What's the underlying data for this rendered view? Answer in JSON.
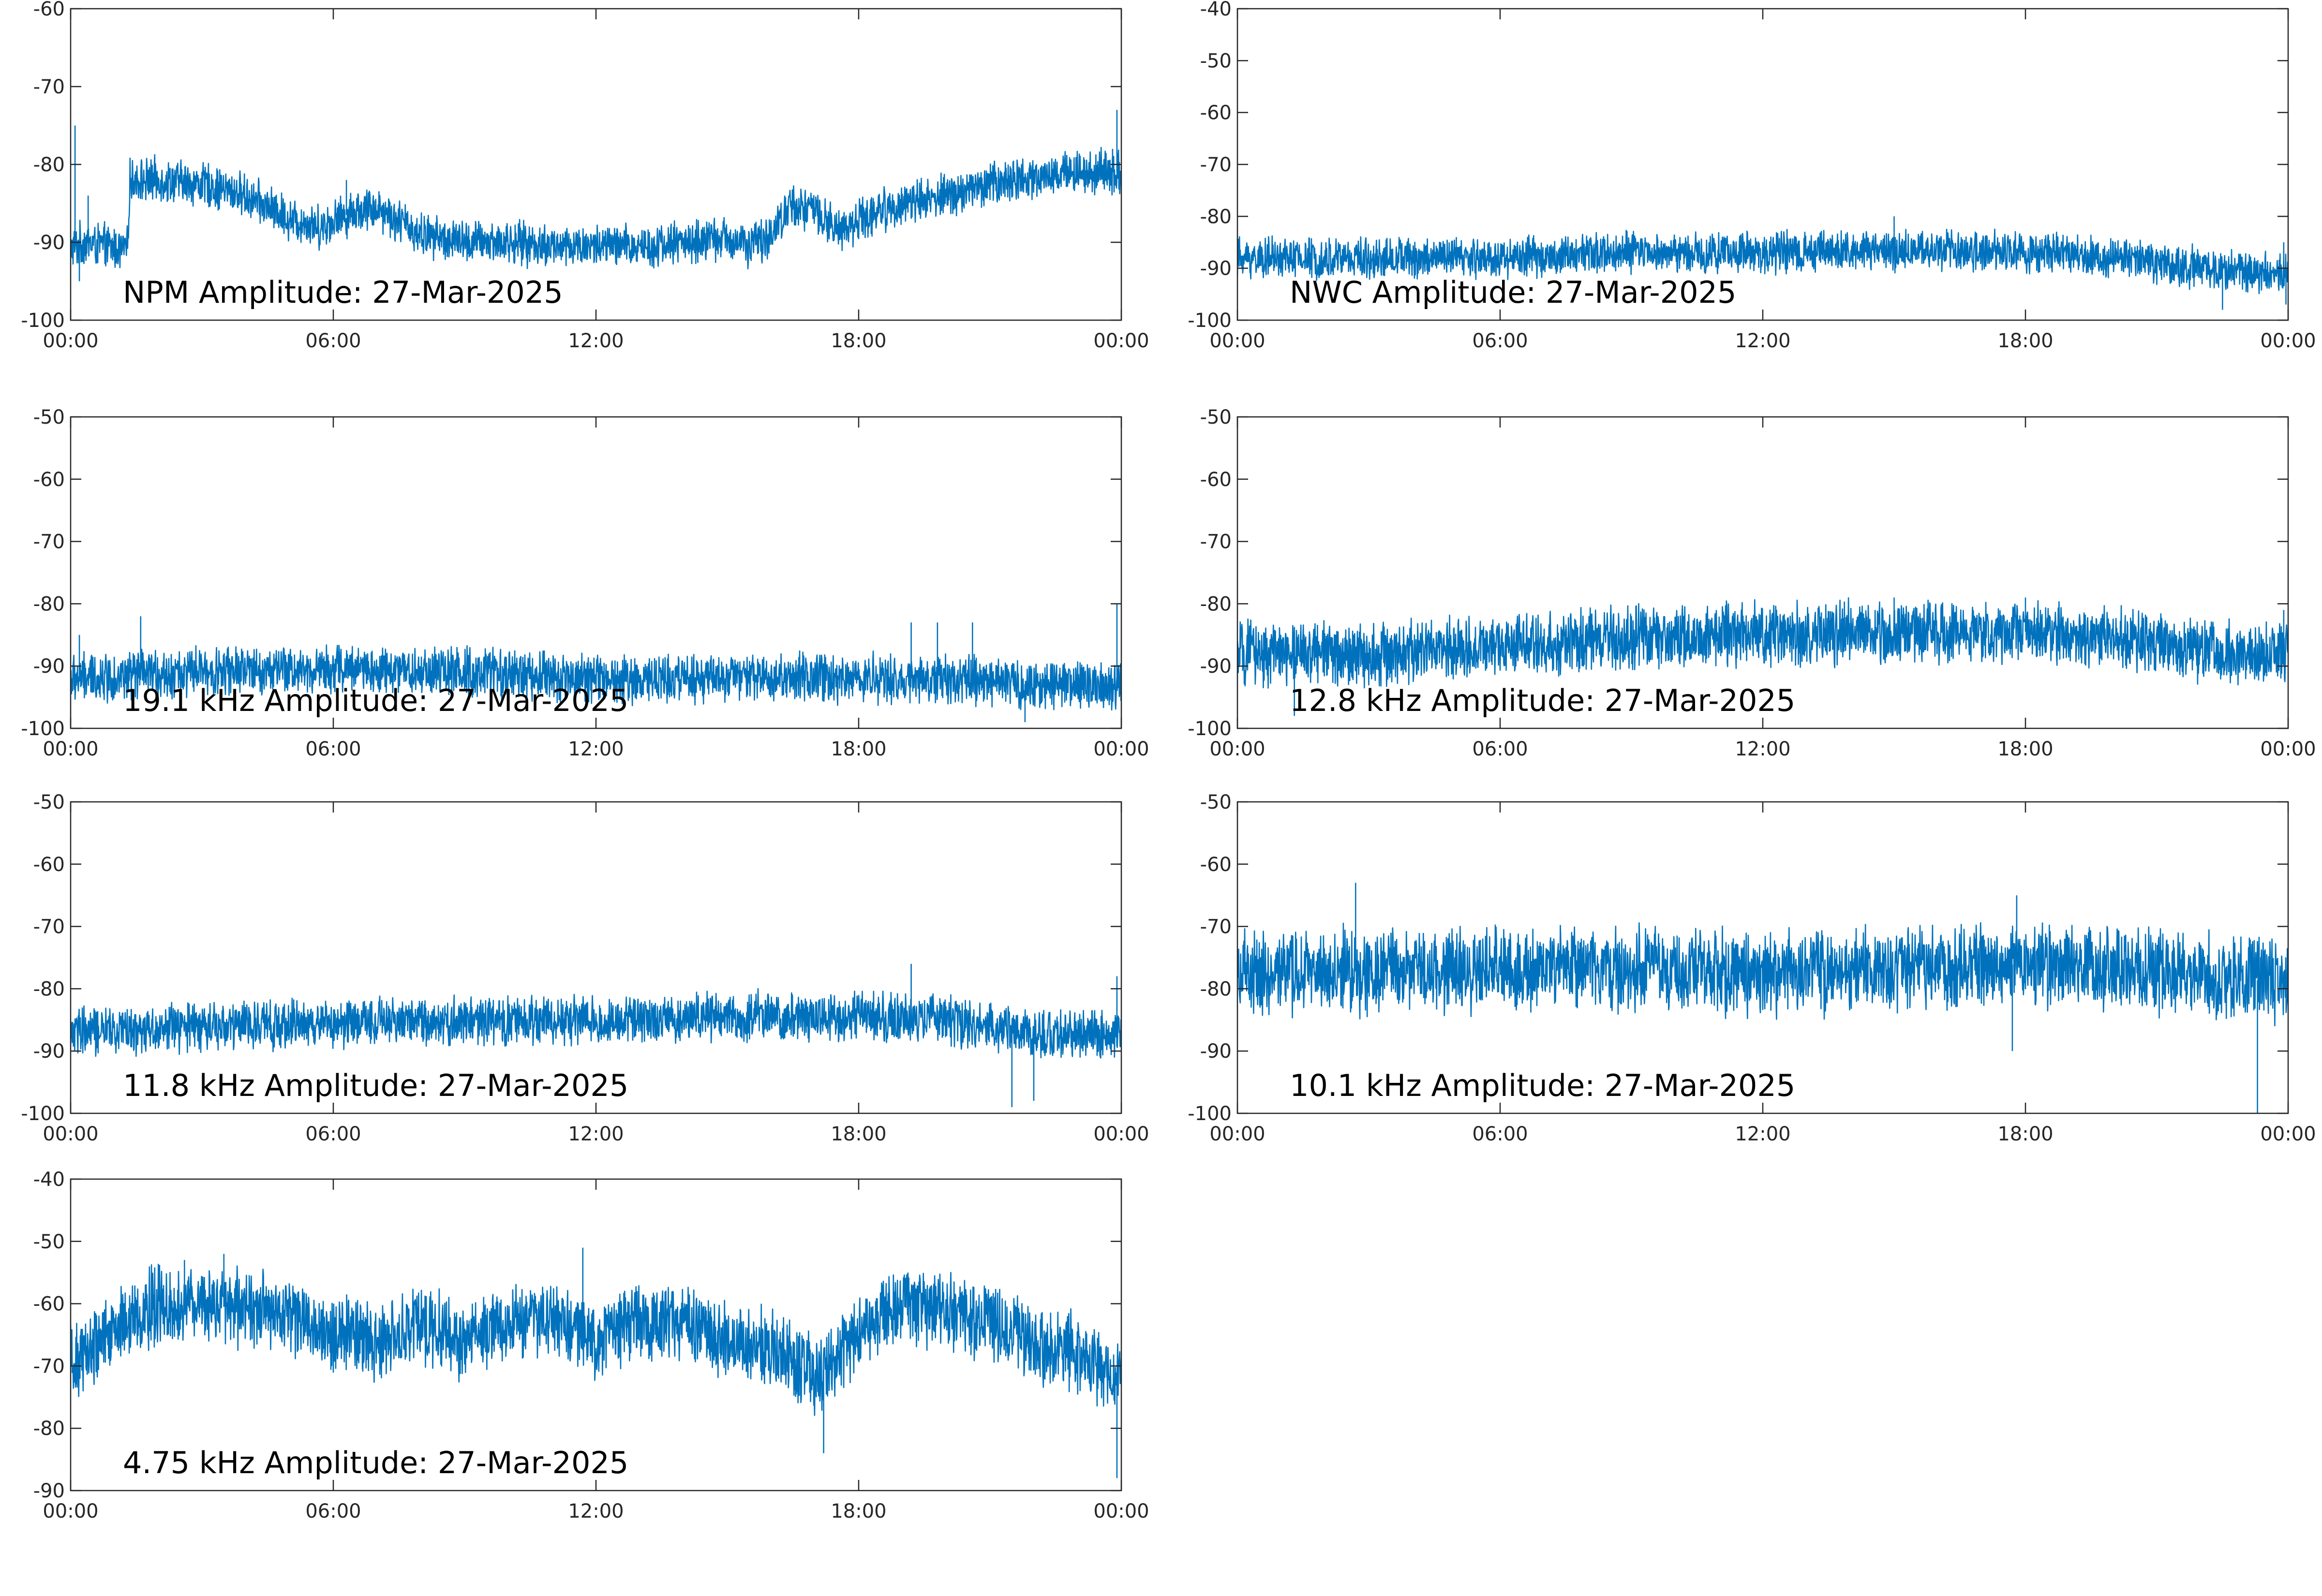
{
  "colors": {
    "trace": "#0072bd",
    "axis": "#262626",
    "background": "#ffffff"
  },
  "chart_data": [
    {
      "type": "line",
      "title": "NPM Amplitude: 27-Mar-2025",
      "xticks": [
        "00:00",
        "06:00",
        "12:00",
        "18:00",
        "00:00"
      ],
      "xlim_hours": [
        0,
        24
      ],
      "ylim": [
        -100,
        -60
      ],
      "yticks": [
        -100,
        -90,
        -80,
        -70,
        -60
      ],
      "ytick_labels": [
        "-100",
        "-90",
        "-80",
        "-70",
        "-60"
      ],
      "baseline": [
        [
          0,
          -91
        ],
        [
          0.3,
          -90
        ],
        [
          1.3,
          -91
        ],
        [
          1.35,
          -82
        ],
        [
          2,
          -82
        ],
        [
          3,
          -82.5
        ],
        [
          4,
          -84
        ],
        [
          5,
          -87
        ],
        [
          5.7,
          -88
        ],
        [
          6.5,
          -86
        ],
        [
          7,
          -85.5
        ],
        [
          8,
          -89
        ],
        [
          9,
          -90
        ],
        [
          10,
          -90
        ],
        [
          11,
          -90.5
        ],
        [
          12,
          -90.5
        ],
        [
          13,
          -90.5
        ],
        [
          14,
          -90
        ],
        [
          15,
          -89.5
        ],
        [
          15.5,
          -90.5
        ],
        [
          16,
          -89
        ],
        [
          16.5,
          -85
        ],
        [
          17,
          -86
        ],
        [
          17.5,
          -88.5
        ],
        [
          18,
          -87
        ],
        [
          19,
          -85
        ],
        [
          20,
          -84
        ],
        [
          21,
          -82.5
        ],
        [
          22,
          -81.5
        ],
        [
          23,
          -81
        ],
        [
          24,
          -81
        ]
      ],
      "spread": 2.5,
      "spikes": [
        [
          0.1,
          -75
        ],
        [
          0.2,
          -95
        ],
        [
          0.4,
          -84
        ],
        [
          6.3,
          -82
        ],
        [
          23.9,
          -73
        ],
        [
          23.8,
          -78
        ]
      ]
    },
    {
      "type": "line",
      "title": "NWC Amplitude: 27-Mar-2025",
      "xticks": [
        "00:00",
        "06:00",
        "12:00",
        "18:00",
        "00:00"
      ],
      "xlim_hours": [
        0,
        24
      ],
      "ylim": [
        -100,
        -40
      ],
      "yticks": [
        -100,
        -90,
        -80,
        -70,
        -60,
        -50,
        -40
      ],
      "ytick_labels": [
        "-100",
        "-90",
        "-80",
        "-70",
        "-60",
        "-50",
        "-40"
      ],
      "baseline": [
        [
          0,
          -88
        ],
        [
          3,
          -88
        ],
        [
          6,
          -88
        ],
        [
          9,
          -87
        ],
        [
          12,
          -87
        ],
        [
          15,
          -86.5
        ],
        [
          18,
          -87
        ],
        [
          20,
          -88
        ],
        [
          22,
          -90
        ],
        [
          24,
          -91
        ]
      ],
      "spread": 3.5,
      "spikes": [
        [
          5,
          -84
        ],
        [
          15,
          -80
        ],
        [
          19,
          -85
        ],
        [
          22.5,
          -98
        ],
        [
          23.9,
          -85
        ],
        [
          23.95,
          -97
        ]
      ]
    },
    {
      "type": "line",
      "title": "19.1 kHz Amplitude: 27-Mar-2025",
      "xticks": [
        "00:00",
        "06:00",
        "12:00",
        "18:00",
        "00:00"
      ],
      "xlim_hours": [
        0,
        24
      ],
      "ylim": [
        -100,
        -50
      ],
      "yticks": [
        -100,
        -90,
        -80,
        -70,
        -60,
        -50
      ],
      "ytick_labels": [
        "-100",
        "-90",
        "-80",
        "-70",
        "-60",
        "-50"
      ],
      "baseline": [
        [
          0,
          -92
        ],
        [
          3,
          -91
        ],
        [
          6,
          -90.5
        ],
        [
          9,
          -91
        ],
        [
          12,
          -92
        ],
        [
          15,
          -92
        ],
        [
          18,
          -92
        ],
        [
          20,
          -92
        ],
        [
          22,
          -93
        ],
        [
          24,
          -93
        ]
      ],
      "spread": 3.5,
      "spikes": [
        [
          0.2,
          -85
        ],
        [
          1.6,
          -82
        ],
        [
          19.2,
          -83
        ],
        [
          19.8,
          -83
        ],
        [
          20.6,
          -83
        ],
        [
          21.8,
          -99
        ],
        [
          23.9,
          -80
        ]
      ]
    },
    {
      "type": "line",
      "title": "12.8 kHz Amplitude: 27-Mar-2025",
      "xticks": [
        "00:00",
        "06:00",
        "12:00",
        "18:00",
        "00:00"
      ],
      "xlim_hours": [
        0,
        24
      ],
      "ylim": [
        -100,
        -50
      ],
      "yticks": [
        -100,
        -90,
        -80,
        -70,
        -60,
        -50
      ],
      "ytick_labels": [
        "-100",
        "-90",
        "-80",
        "-70",
        "-60",
        "-50"
      ],
      "baseline": [
        [
          0,
          -88
        ],
        [
          3,
          -88
        ],
        [
          6,
          -87
        ],
        [
          9,
          -85.5
        ],
        [
          12,
          -85
        ],
        [
          15,
          -84.5
        ],
        [
          18,
          -84.5
        ],
        [
          20,
          -85.5
        ],
        [
          22,
          -87.5
        ],
        [
          24,
          -88
        ]
      ],
      "spread": 4.5,
      "spikes": [
        [
          1.3,
          -98
        ],
        [
          15,
          -79
        ],
        [
          18,
          -79
        ],
        [
          23.9,
          -81
        ]
      ]
    },
    {
      "type": "line",
      "title": "11.8 kHz Amplitude: 27-Mar-2025",
      "xticks": [
        "00:00",
        "06:00",
        "12:00",
        "18:00",
        "00:00"
      ],
      "xlim_hours": [
        0,
        24
      ],
      "ylim": [
        -100,
        -50
      ],
      "yticks": [
        -100,
        -90,
        -80,
        -70,
        -60,
        -50
      ],
      "ytick_labels": [
        "-100",
        "-90",
        "-80",
        "-70",
        "-60",
        "-50"
      ],
      "baseline": [
        [
          0,
          -87
        ],
        [
          3,
          -86
        ],
        [
          6,
          -85.5
        ],
        [
          9,
          -85
        ],
        [
          12,
          -85
        ],
        [
          15,
          -84.5
        ],
        [
          18,
          -84.5
        ],
        [
          20,
          -85
        ],
        [
          22,
          -87.5
        ],
        [
          24,
          -87
        ]
      ],
      "spread": 3.5,
      "spikes": [
        [
          19.2,
          -76
        ],
        [
          21.5,
          -99
        ],
        [
          22,
          -98
        ],
        [
          23.9,
          -78
        ]
      ]
    },
    {
      "type": "line",
      "title": "10.1 kHz Amplitude: 27-Mar-2025",
      "xticks": [
        "00:00",
        "06:00",
        "12:00",
        "18:00",
        "00:00"
      ],
      "xlim_hours": [
        0,
        24
      ],
      "ylim": [
        -100,
        -50
      ],
      "yticks": [
        -100,
        -90,
        -80,
        -70,
        -60,
        -50
      ],
      "ytick_labels": [
        "-100",
        "-90",
        "-80",
        "-70",
        "-60",
        "-50"
      ],
      "baseline": [
        [
          0,
          -78
        ],
        [
          3,
          -77
        ],
        [
          6,
          -77
        ],
        [
          9,
          -77
        ],
        [
          12,
          -77.5
        ],
        [
          15,
          -77
        ],
        [
          18,
          -76
        ],
        [
          20,
          -76.5
        ],
        [
          22,
          -78
        ],
        [
          24,
          -79
        ]
      ],
      "spread": 6,
      "spikes": [
        [
          2.7,
          -63
        ],
        [
          17.7,
          -90
        ],
        [
          23.3,
          -100
        ],
        [
          17.8,
          -65
        ]
      ]
    },
    {
      "type": "line",
      "title": "4.75 kHz Amplitude: 27-Mar-2025",
      "xticks": [
        "00:00",
        "06:00",
        "12:00",
        "18:00",
        "00:00"
      ],
      "xlim_hours": [
        0,
        24
      ],
      "ylim": [
        -90,
        -40
      ],
      "yticks": [
        -90,
        -80,
        -70,
        -60,
        -50,
        -40
      ],
      "ytick_labels": [
        "-90",
        "-80",
        "-70",
        "-60",
        "-50",
        "-40"
      ],
      "baseline": [
        [
          0,
          -70
        ],
        [
          1,
          -64
        ],
        [
          2,
          -60
        ],
        [
          3,
          -60
        ],
        [
          4,
          -61
        ],
        [
          5,
          -62
        ],
        [
          6,
          -64
        ],
        [
          7,
          -67
        ],
        [
          8,
          -63
        ],
        [
          9,
          -66
        ],
        [
          10,
          -63
        ],
        [
          11,
          -62
        ],
        [
          12,
          -66
        ],
        [
          13,
          -63
        ],
        [
          14,
          -63
        ],
        [
          15,
          -66
        ],
        [
          16,
          -67
        ],
        [
          17,
          -72
        ],
        [
          18,
          -65
        ],
        [
          19,
          -60
        ],
        [
          20,
          -61
        ],
        [
          21,
          -63
        ],
        [
          22,
          -66
        ],
        [
          23,
          -68
        ],
        [
          24,
          -72
        ]
      ],
      "spread": 5.5,
      "spikes": [
        [
          2.6,
          -53
        ],
        [
          11.7,
          -51
        ],
        [
          17.2,
          -84
        ],
        [
          23.9,
          -88
        ],
        [
          3.5,
          -52
        ]
      ]
    }
  ]
}
